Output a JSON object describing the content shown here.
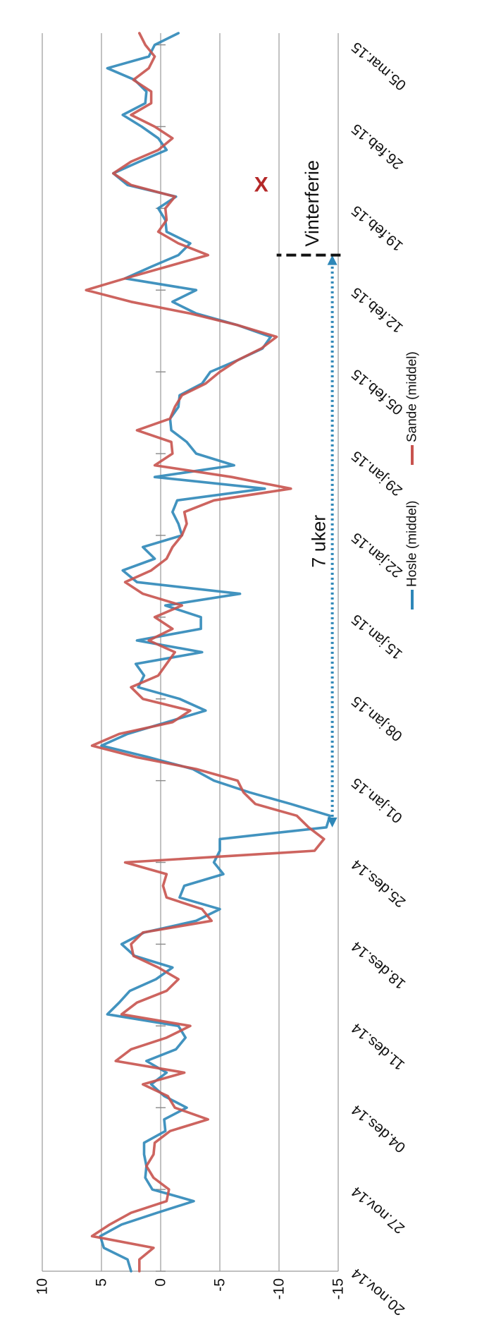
{
  "chart_data": {
    "type": "line",
    "title": "",
    "xlabel": "",
    "ylabel": "",
    "ylim": [
      -15,
      10
    ],
    "yticks": [
      "10",
      "5",
      "0",
      "-5",
      "-10",
      "-15"
    ],
    "xlim": [
      "2014-11-20",
      "2015-03-06"
    ],
    "xticks": [
      "20.nov.14",
      "27.nov.14",
      "04.des.14",
      "11.des.14",
      "18.des.14",
      "25.des.14",
      "01.jan.15",
      "08.jan.15",
      "15.jan.15",
      "22.jan.15",
      "29.jan.15",
      "05.feb.15",
      "12.feb.15",
      "19.feb.15",
      "26.feb.15",
      "05.mar.15"
    ],
    "grid": true,
    "legend": "top",
    "series": [
      {
        "name": "Hosle (middel)",
        "color": "#2E87B8",
        "values": [
          {
            "x": "2014-11-20",
            "y": 2.5
          },
          {
            "x": "2014-11-21",
            "y": 2.8
          },
          {
            "x": "2014-11-22",
            "y": 4.8
          },
          {
            "x": "2014-11-23",
            "y": 5.1
          },
          {
            "x": "2014-11-24",
            "y": 3.3
          },
          {
            "x": "2014-11-25",
            "y": 0.3
          },
          {
            "x": "2014-11-26",
            "y": -2.8
          },
          {
            "x": "2014-11-27",
            "y": 0.7
          },
          {
            "x": "2014-11-28",
            "y": 1.3
          },
          {
            "x": "2014-11-29",
            "y": 1.2
          },
          {
            "x": "2014-11-30",
            "y": 1.4
          },
          {
            "x": "2014-12-01",
            "y": 1.4
          },
          {
            "x": "2014-12-02",
            "y": -0.4
          },
          {
            "x": "2014-12-03",
            "y": -0.3
          },
          {
            "x": "2014-12-04",
            "y": -2.2
          },
          {
            "x": "2014-12-05",
            "y": -0.3
          },
          {
            "x": "2014-12-06",
            "y": 0.8
          },
          {
            "x": "2014-12-07",
            "y": -0.5
          },
          {
            "x": "2014-12-08",
            "y": 1.2
          },
          {
            "x": "2014-12-09",
            "y": -1.3
          },
          {
            "x": "2014-12-10",
            "y": -2.1
          },
          {
            "x": "2014-12-11",
            "y": -1.5
          },
          {
            "x": "2014-12-12",
            "y": 4.5
          },
          {
            "x": "2014-12-13",
            "y": 3.5
          },
          {
            "x": "2014-12-14",
            "y": 2.6
          },
          {
            "x": "2014-12-15",
            "y": 0.4
          },
          {
            "x": "2014-12-16",
            "y": -1.0
          },
          {
            "x": "2014-12-17",
            "y": 2.2
          },
          {
            "x": "2014-12-18",
            "y": 3.3
          },
          {
            "x": "2014-12-19",
            "y": 1.4
          },
          {
            "x": "2014-12-20",
            "y": -3.0
          },
          {
            "x": "2014-12-21",
            "y": -5.0
          },
          {
            "x": "2014-12-22",
            "y": -1.6
          },
          {
            "x": "2014-12-23",
            "y": -2.0
          },
          {
            "x": "2014-12-24",
            "y": -5.3
          },
          {
            "x": "2014-12-25",
            "y": -4.5
          },
          {
            "x": "2014-12-26",
            "y": -5.0
          },
          {
            "x": "2014-12-27",
            "y": -5.0
          },
          {
            "x": "2014-12-28",
            "y": -14.0
          },
          {
            "x": "2014-12-29",
            "y": -14.3
          },
          {
            "x": "2014-12-30",
            "y": -11.0
          },
          {
            "x": "2014-12-31",
            "y": -7.5
          },
          {
            "x": "2015-01-01",
            "y": -4.5
          },
          {
            "x": "2015-01-02",
            "y": -2.7
          },
          {
            "x": "2015-01-03",
            "y": 1.0
          },
          {
            "x": "2015-01-04",
            "y": 5.0
          },
          {
            "x": "2015-01-05",
            "y": 2.8
          },
          {
            "x": "2015-01-06",
            "y": -0.5
          },
          {
            "x": "2015-01-07",
            "y": -3.8
          },
          {
            "x": "2015-01-08",
            "y": -1.6
          },
          {
            "x": "2015-01-09",
            "y": 1.9
          },
          {
            "x": "2015-01-10",
            "y": 1.4
          },
          {
            "x": "2015-01-11",
            "y": 2.1
          },
          {
            "x": "2015-01-12",
            "y": -3.5
          },
          {
            "x": "2015-01-13",
            "y": 2.0
          },
          {
            "x": "2015-01-14",
            "y": -3.4
          },
          {
            "x": "2015-01-15",
            "y": -3.4
          },
          {
            "x": "2015-01-16",
            "y": -0.4
          },
          {
            "x": "2015-01-17",
            "y": -6.7
          },
          {
            "x": "2015-01-18",
            "y": 2.0
          },
          {
            "x": "2015-01-19",
            "y": 3.2
          },
          {
            "x": "2015-01-20",
            "y": 0.5
          },
          {
            "x": "2015-01-21",
            "y": 1.5
          },
          {
            "x": "2015-01-22",
            "y": -1.8
          },
          {
            "x": "2015-01-23",
            "y": -1.5
          },
          {
            "x": "2015-01-24",
            "y": -1.0
          },
          {
            "x": "2015-01-25",
            "y": -1.4
          },
          {
            "x": "2015-01-26",
            "y": -8.8
          },
          {
            "x": "2015-01-27",
            "y": 0.5
          },
          {
            "x": "2015-01-28",
            "y": -6.2
          },
          {
            "x": "2015-01-29",
            "y": -3.0
          },
          {
            "x": "2015-01-30",
            "y": -2.2
          },
          {
            "x": "2015-01-31",
            "y": -0.9
          },
          {
            "x": "2015-02-01",
            "y": -0.8
          },
          {
            "x": "2015-02-02",
            "y": -1.5
          },
          {
            "x": "2015-02-03",
            "y": -1.6
          },
          {
            "x": "2015-02-04",
            "y": -3.5
          },
          {
            "x": "2015-02-05",
            "y": -4.2
          },
          {
            "x": "2015-02-06",
            "y": -6.5
          },
          {
            "x": "2015-02-07",
            "y": -8.6
          },
          {
            "x": "2015-02-08",
            "y": -9.3
          },
          {
            "x": "2015-02-09",
            "y": -6.5
          },
          {
            "x": "2015-02-10",
            "y": -3.0
          },
          {
            "x": "2015-02-11",
            "y": -1.0
          },
          {
            "x": "2015-02-12",
            "y": -3.0
          },
          {
            "x": "2015-02-13",
            "y": 3.0
          },
          {
            "x": "2015-02-14",
            "y": 0.8
          },
          {
            "x": "2015-02-15",
            "y": -1.5
          },
          {
            "x": "2015-02-16",
            "y": -2.5
          },
          {
            "x": "2015-02-17",
            "y": -0.5
          },
          {
            "x": "2015-02-18",
            "y": -0.4
          },
          {
            "x": "2015-02-19",
            "y": 0.2
          },
          {
            "x": "2015-02-20",
            "y": -1.3
          },
          {
            "x": "2015-02-21",
            "y": 2.8
          },
          {
            "x": "2015-02-22",
            "y": 4.0
          },
          {
            "x": "2015-02-23",
            "y": 1.8
          },
          {
            "x": "2015-02-24",
            "y": -0.5
          },
          {
            "x": "2015-02-25",
            "y": 0.2
          },
          {
            "x": "2015-02-26",
            "y": 1.6
          },
          {
            "x": "2015-02-27",
            "y": 3.2
          },
          {
            "x": "2015-02-28",
            "y": 1.3
          },
          {
            "x": "2015-03-01",
            "y": 1.2
          },
          {
            "x": "2015-03-02",
            "y": 2.2
          },
          {
            "x": "2015-03-03",
            "y": 4.5
          },
          {
            "x": "2015-03-04",
            "y": 1.0
          },
          {
            "x": "2015-03-05",
            "y": 0.5
          },
          {
            "x": "2015-03-06",
            "y": -1.5
          }
        ]
      },
      {
        "name": "Sande (middel)",
        "color": "#C8534E",
        "values": [
          {
            "x": "2014-11-20",
            "y": 1.8
          },
          {
            "x": "2014-11-21",
            "y": 1.8
          },
          {
            "x": "2014-11-22",
            "y": 0.6
          },
          {
            "x": "2014-11-23",
            "y": 5.8
          },
          {
            "x": "2014-11-24",
            "y": 4.3
          },
          {
            "x": "2014-11-25",
            "y": 2.5
          },
          {
            "x": "2014-11-26",
            "y": -0.5
          },
          {
            "x": "2014-11-27",
            "y": -0.7
          },
          {
            "x": "2014-11-28",
            "y": 0.6
          },
          {
            "x": "2014-11-29",
            "y": 1.2
          },
          {
            "x": "2014-11-30",
            "y": 0.6
          },
          {
            "x": "2014-12-01",
            "y": 0.5
          },
          {
            "x": "2014-12-02",
            "y": -0.8
          },
          {
            "x": "2014-12-03",
            "y": -4.0
          },
          {
            "x": "2014-12-04",
            "y": -1.2
          },
          {
            "x": "2014-12-05",
            "y": -0.6
          },
          {
            "x": "2014-12-06",
            "y": 1.5
          },
          {
            "x": "2014-12-07",
            "y": -2.0
          },
          {
            "x": "2014-12-08",
            "y": 3.8
          },
          {
            "x": "2014-12-09",
            "y": 2.5
          },
          {
            "x": "2014-12-10",
            "y": -0.5
          },
          {
            "x": "2014-12-11",
            "y": -2.5
          },
          {
            "x": "2014-12-12",
            "y": 3.3
          },
          {
            "x": "2014-12-13",
            "y": 2.0
          },
          {
            "x": "2014-12-14",
            "y": -0.5
          },
          {
            "x": "2014-12-15",
            "y": -1.5
          },
          {
            "x": "2014-12-16",
            "y": 0.2
          },
          {
            "x": "2014-12-17",
            "y": 2.3
          },
          {
            "x": "2014-12-18",
            "y": 2.5
          },
          {
            "x": "2014-12-19",
            "y": 1.5
          },
          {
            "x": "2014-12-20",
            "y": -4.3
          },
          {
            "x": "2014-12-21",
            "y": -3.5
          },
          {
            "x": "2014-12-22",
            "y": -0.5
          },
          {
            "x": "2014-12-23",
            "y": -0.2
          },
          {
            "x": "2014-12-24",
            "y": -0.5
          },
          {
            "x": "2014-12-25",
            "y": 3.0
          },
          {
            "x": "2014-12-26",
            "y": -13.0
          },
          {
            "x": "2014-12-27",
            "y": -13.8
          },
          {
            "x": "2014-12-28",
            "y": -12.5
          },
          {
            "x": "2014-12-29",
            "y": -11.5
          },
          {
            "x": "2014-12-30",
            "y": -8.0
          },
          {
            "x": "2014-12-31",
            "y": -7.0
          },
          {
            "x": "2015-01-01",
            "y": -6.5
          },
          {
            "x": "2015-01-02",
            "y": -3.0
          },
          {
            "x": "2015-01-03",
            "y": 2.0
          },
          {
            "x": "2015-01-04",
            "y": 5.8
          },
          {
            "x": "2015-01-05",
            "y": 3.5
          },
          {
            "x": "2015-01-06",
            "y": -1.0
          },
          {
            "x": "2015-01-07",
            "y": -2.5
          },
          {
            "x": "2015-01-08",
            "y": 1.5
          },
          {
            "x": "2015-01-09",
            "y": 2.5
          },
          {
            "x": "2015-01-10",
            "y": 0.2
          },
          {
            "x": "2015-01-11",
            "y": -0.5
          },
          {
            "x": "2015-01-12",
            "y": -1.2
          },
          {
            "x": "2015-01-13",
            "y": 1.0
          },
          {
            "x": "2015-01-14",
            "y": -1.0
          },
          {
            "x": "2015-01-15",
            "y": 0.5
          },
          {
            "x": "2015-01-16",
            "y": -1.8
          },
          {
            "x": "2015-01-17",
            "y": 1.5
          },
          {
            "x": "2015-01-18",
            "y": 3.0
          },
          {
            "x": "2015-01-19",
            "y": 0.8
          },
          {
            "x": "2015-01-20",
            "y": -0.5
          },
          {
            "x": "2015-01-21",
            "y": -1.0
          },
          {
            "x": "2015-01-22",
            "y": -1.8
          },
          {
            "x": "2015-01-23",
            "y": -2.2
          },
          {
            "x": "2015-01-24",
            "y": -2.0
          },
          {
            "x": "2015-01-25",
            "y": -4.5
          },
          {
            "x": "2015-01-26",
            "y": -11.0
          },
          {
            "x": "2015-01-27",
            "y": -6.0
          },
          {
            "x": "2015-01-28",
            "y": 0.5
          },
          {
            "x": "2015-01-29",
            "y": -1.0
          },
          {
            "x": "2015-01-30",
            "y": -0.9
          },
          {
            "x": "2015-01-31",
            "y": 2.0
          },
          {
            "x": "2015-02-01",
            "y": -0.8
          },
          {
            "x": "2015-02-02",
            "y": -1.2
          },
          {
            "x": "2015-02-03",
            "y": -1.8
          },
          {
            "x": "2015-02-04",
            "y": -3.8
          },
          {
            "x": "2015-02-05",
            "y": -5.0
          },
          {
            "x": "2015-02-06",
            "y": -6.5
          },
          {
            "x": "2015-02-07",
            "y": -8.5
          },
          {
            "x": "2015-02-08",
            "y": -9.8
          },
          {
            "x": "2015-02-09",
            "y": -6.5
          },
          {
            "x": "2015-02-10",
            "y": -2.5
          },
          {
            "x": "2015-02-11",
            "y": 2.5
          },
          {
            "x": "2015-02-12",
            "y": 6.3
          },
          {
            "x": "2015-02-13",
            "y": 3.0
          },
          {
            "x": "2015-02-14",
            "y": -0.5
          },
          {
            "x": "2015-02-15",
            "y": -4.0
          },
          {
            "x": "2015-02-16",
            "y": -1.5
          },
          {
            "x": "2015-02-17",
            "y": 0.2
          },
          {
            "x": "2015-02-18",
            "y": -0.5
          },
          {
            "x": "2015-02-19",
            "y": -0.4
          },
          {
            "x": "2015-02-20",
            "y": -1.2
          },
          {
            "x": "2015-02-21",
            "y": 2.5
          },
          {
            "x": "2015-02-22",
            "y": 4.0
          },
          {
            "x": "2015-02-23",
            "y": 2.5
          },
          {
            "x": "2015-02-24",
            "y": 0.2
          },
          {
            "x": "2015-02-25",
            "y": -1.0
          },
          {
            "x": "2015-02-26",
            "y": 0.5
          },
          {
            "x": "2015-02-27",
            "y": 2.5
          },
          {
            "x": "2015-02-28",
            "y": 0.8
          },
          {
            "x": "2015-03-01",
            "y": 0.8
          },
          {
            "x": "2015-03-02",
            "y": 2.3
          },
          {
            "x": "2015-03-03",
            "y": 1.0
          },
          {
            "x": "2015-03-04",
            "y": 0.5
          },
          {
            "x": "2015-03-05",
            "y": 1.3
          },
          {
            "x": "2015-03-06",
            "y": 1.8
          }
        ]
      }
    ],
    "annotations": [
      {
        "text": "7 uker",
        "from": "2014-12-28",
        "to": "2015-02-15",
        "style": "dotted double arrow",
        "color": "#2E87B8"
      },
      {
        "text": "Vinterferie",
        "x": "2015-02-15",
        "style": "dashed vertical marker",
        "color": "#111111"
      },
      {
        "text": "X",
        "x": "2015-02-21",
        "y": -8.5,
        "color": "#B42828"
      }
    ]
  }
}
